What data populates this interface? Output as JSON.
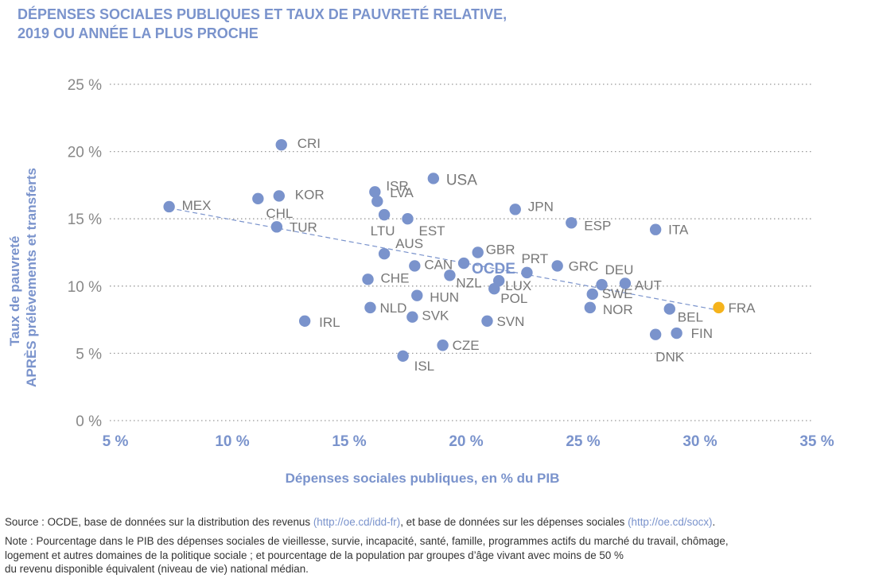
{
  "title": {
    "line1": "DÉPENSES SOCIALES PUBLIQUES ET TAUX DE PAUVRETÉ RELATIVE,",
    "line2": "2019 OU ANNÉE LA PLUS PROCHE"
  },
  "colors": {
    "point": "#7a93cc",
    "highlight": "#f5b31c",
    "axis_text": "#7a93cc",
    "tick_text_y": "#888888",
    "label_text": "#777777",
    "grid": "#999999",
    "trend": "#7a93cc"
  },
  "chart_data": {
    "type": "scatter",
    "xlabel": "Dépenses sociales publiques, en % du PIB",
    "ylabel_line1": "Taux de pauvreté",
    "ylabel_line2": "APRÈS prélèvements et transferts",
    "xlim": [
      5,
      35
    ],
    "ylim": [
      0,
      25
    ],
    "x_ticks": [
      5,
      10,
      15,
      20,
      25,
      30,
      35
    ],
    "y_ticks": [
      0,
      5,
      10,
      15,
      20,
      25
    ],
    "x_tick_labels": [
      "5 %",
      "10 %",
      "15 %",
      "20 %",
      "25 %",
      "30 %",
      "35 %"
    ],
    "y_tick_labels": [
      "0 %",
      "5 %",
      "10 %",
      "15 %",
      "20 %",
      "25 %"
    ],
    "grid": "horizontal dotted",
    "trend_line": {
      "x": [
        7.3,
        30.8
      ],
      "y": [
        15.8,
        8.2
      ]
    },
    "points": [
      {
        "label": "CRI",
        "x": 12.1,
        "y": 20.5
      },
      {
        "label": "USA",
        "x": 18.6,
        "y": 18.0
      },
      {
        "label": "ISR",
        "x": 16.1,
        "y": 17.0
      },
      {
        "label": "KOR",
        "x": 12.0,
        "y": 16.7
      },
      {
        "label": "CHL",
        "x": 11.1,
        "y": 16.5
      },
      {
        "label": "LVA",
        "x": 16.2,
        "y": 16.3
      },
      {
        "label": "MEX",
        "x": 7.3,
        "y": 15.9
      },
      {
        "label": "JPN",
        "x": 22.1,
        "y": 15.7
      },
      {
        "label": "LTU",
        "x": 16.5,
        "y": 15.3
      },
      {
        "label": "EST",
        "x": 17.5,
        "y": 15.0
      },
      {
        "label": "ESP",
        "x": 24.5,
        "y": 14.7
      },
      {
        "label": "TUR",
        "x": 11.9,
        "y": 14.4
      },
      {
        "label": "ITA",
        "x": 28.1,
        "y": 14.2
      },
      {
        "label": "AUS",
        "x": 16.5,
        "y": 12.4
      },
      {
        "label": "GBR",
        "x": 20.5,
        "y": 12.5
      },
      {
        "label": "CAN",
        "x": 17.8,
        "y": 11.5
      },
      {
        "label": "OCDE",
        "x": 19.9,
        "y": 11.7
      },
      {
        "label": "GRC",
        "x": 23.9,
        "y": 11.5
      },
      {
        "label": "PRT",
        "x": 22.6,
        "y": 11.0
      },
      {
        "label": "NZL",
        "x": 19.3,
        "y": 10.8
      },
      {
        "label": "CHE",
        "x": 15.8,
        "y": 10.5
      },
      {
        "label": "LUX",
        "x": 21.4,
        "y": 10.4
      },
      {
        "label": "DEU",
        "x": 25.8,
        "y": 10.1
      },
      {
        "label": "AUT",
        "x": 26.8,
        "y": 10.2
      },
      {
        "label": "POL",
        "x": 21.2,
        "y": 9.8
      },
      {
        "label": "SWE",
        "x": 25.4,
        "y": 9.4
      },
      {
        "label": "HUN",
        "x": 17.9,
        "y": 9.3
      },
      {
        "label": "NLD",
        "x": 15.9,
        "y": 8.4
      },
      {
        "label": "NOR",
        "x": 25.3,
        "y": 8.4
      },
      {
        "label": "BEL",
        "x": 28.7,
        "y": 8.3
      },
      {
        "label": "FRA",
        "x": 30.8,
        "y": 8.4
      },
      {
        "label": "SVK",
        "x": 17.7,
        "y": 7.7
      },
      {
        "label": "IRL",
        "x": 13.1,
        "y": 7.4
      },
      {
        "label": "SVN",
        "x": 20.9,
        "y": 7.4
      },
      {
        "label": "DNK",
        "x": 28.1,
        "y": 6.4
      },
      {
        "label": "FIN",
        "x": 29.0,
        "y": 6.5
      },
      {
        "label": "CZE",
        "x": 19.0,
        "y": 5.6
      },
      {
        "label": "ISL",
        "x": 17.3,
        "y": 4.8
      }
    ]
  },
  "footnotes": {
    "source_prefix": "Source : OCDE, base de données sur la distribution des revenus ",
    "source_url1": "(http://oe.cd/idd-fr)",
    "source_mid": ", et base de données sur les dépenses sociales ",
    "source_url2": "(http://oe.cd/socx)",
    "source_suffix": ".",
    "note_line1": "Note : Pourcentage dans le PIB des dépenses sociales de vieillesse, survie, incapacité, santé, famille, programmes actifs du marché du travail, chômage,",
    "note_line2": "logement et autres domaines de la politique sociale ; et pourcentage de la population par groupes d’âge vivant avec moins de 50 %",
    "note_line3": "du revenu disponible équivalent (niveau de vie) national médian."
  }
}
